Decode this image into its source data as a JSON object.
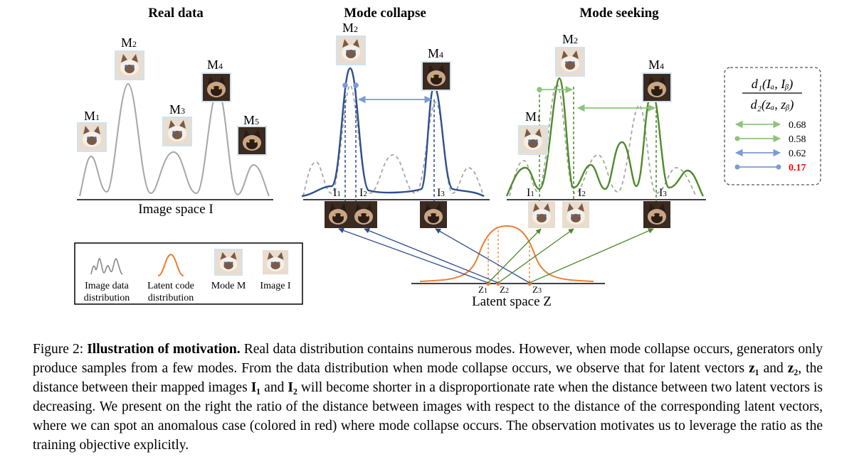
{
  "panels": {
    "real_title": "Real data",
    "collapse_title": "Mode collapse",
    "seeking_title": "Mode seeking"
  },
  "modes": {
    "m1": "M",
    "m1_sub": "1",
    "m2": "M",
    "m2_sub": "2",
    "m3": "M",
    "m3_sub": "3",
    "m4": "M",
    "m4_sub": "4",
    "m5": "M",
    "m5_sub": "5"
  },
  "images": {
    "i1": "I",
    "i1_sub": "1",
    "i2": "I",
    "i2_sub": "2",
    "i3": "I",
    "i3_sub": "3"
  },
  "latent": {
    "z1": "Z",
    "z1_sub": "1",
    "z2": "Z",
    "z2_sub": "2",
    "z3": "Z",
    "z3_sub": "3",
    "label": "Latent space Z"
  },
  "axis": {
    "image_space": "Image space I"
  },
  "legend": {
    "item1_line1": "Image data",
    "item1_line2": "distribution",
    "item2_line1": "Latent code",
    "item2_line2": "distribution",
    "item3": "Mode M",
    "item4": "Image I"
  },
  "ratio_box": {
    "numerator": "d₁(Iₐ, Iᵦ)",
    "denominator": "d₂(zₐ, zᵦ)",
    "rows": [
      {
        "value": "0.68",
        "color": "#8cc47a",
        "highlight": false
      },
      {
        "value": "0.58",
        "color": "#8cc47a",
        "highlight": false
      },
      {
        "value": "0.62",
        "color": "#7b9bd4",
        "highlight": false
      },
      {
        "value": "0.17",
        "color": "#7b9bd4",
        "highlight": true
      }
    ]
  },
  "colors": {
    "gray": "#a6a6a6",
    "blue": "#2e4f8f",
    "green": "#4f8a2b",
    "orange": "#ee7d31",
    "red": "#ff0000"
  },
  "caption": {
    "prefix": "Figure 2: ",
    "bold": "Illustration of motivation.",
    "p1": " Real data distribution contains numerous modes. However, when mode collapse occurs, generators only produce samples from a few modes. From the data distribution when mode collapse occurs, we observe that for latent vectors ",
    "z1": "z₁",
    "and1": " and ",
    "z2": "z₂",
    "p2": ", the distance between their mapped images ",
    "I1": "I₁",
    "and2": " and ",
    "I2": "I₂",
    "p3": " will become shorter in a disproportionate rate when the distance between two latent vectors is decreasing. We present on the right the ratio of the distance between images with respect to the distance of the corresponding latent vectors, where we can spot an anomalous case (colored in red) where mode collapse occurs. The observation motivates us to leverage the ratio as the training objective explicitly."
  }
}
